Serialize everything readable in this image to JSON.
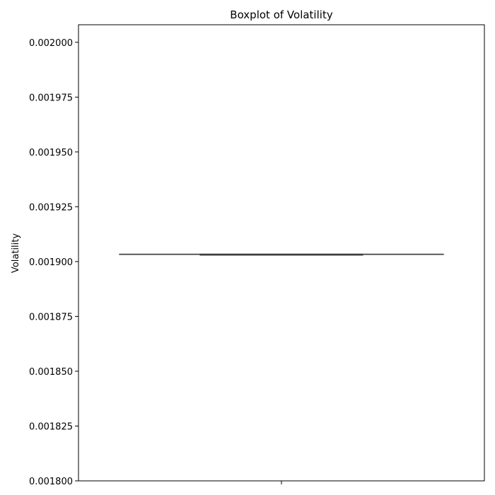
{
  "chart_data": {
    "type": "box",
    "title": "Boxplot of Volatility",
    "xlabel": "",
    "ylabel": "Volatility",
    "ylim": [
      0.0018,
      0.002008
    ],
    "yticks": [
      0.0018,
      0.001825,
      0.00185,
      0.001875,
      0.0019,
      0.001925,
      0.00195,
      0.001975,
      0.002
    ],
    "ytick_labels": [
      "0.001800",
      "0.001825",
      "0.001850",
      "0.001875",
      "0.001900",
      "0.001925",
      "0.001950",
      "0.001975",
      "0.002000"
    ],
    "grid": false,
    "boxes": [
      {
        "min": 0.0019033,
        "q1": 0.0019033,
        "median": 0.0019033,
        "q3": 0.0019033,
        "max": 0.0019033
      }
    ],
    "colors": {
      "box_line": "#3d3d3d",
      "axis": "#000000"
    }
  }
}
